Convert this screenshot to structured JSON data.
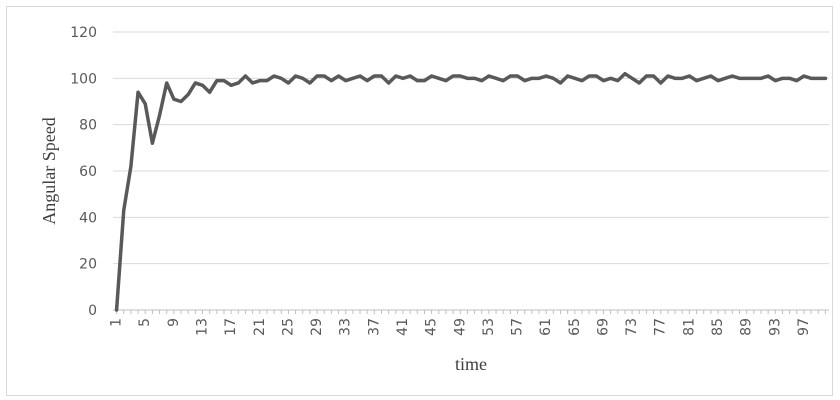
{
  "chart_data": {
    "type": "line",
    "xlabel": "time",
    "ylabel": "Angular Speed",
    "ylim": [
      0,
      120
    ],
    "yticks": [
      0,
      20,
      40,
      60,
      80,
      100,
      120
    ],
    "x_tick_labels": [
      "1",
      "5",
      "9",
      "13",
      "17",
      "21",
      "25",
      "29",
      "33",
      "37",
      "41",
      "45",
      "49",
      "53",
      "57",
      "61",
      "65",
      "69",
      "73",
      "77",
      "81",
      "85",
      "89",
      "93",
      "97"
    ],
    "grid": "horizontal",
    "legend": "none",
    "line_color": "#595959",
    "x": [
      1,
      2,
      3,
      4,
      5,
      6,
      7,
      8,
      9,
      10,
      11,
      12,
      13,
      14,
      15,
      16,
      17,
      18,
      19,
      20,
      21,
      22,
      23,
      24,
      25,
      26,
      27,
      28,
      29,
      30,
      31,
      32,
      33,
      34,
      35,
      36,
      37,
      38,
      39,
      40,
      41,
      42,
      43,
      44,
      45,
      46,
      47,
      48,
      49,
      50,
      51,
      52,
      53,
      54,
      55,
      56,
      57,
      58,
      59,
      60,
      61,
      62,
      63,
      64,
      65,
      66,
      67,
      68,
      69,
      70,
      71,
      72,
      73,
      74,
      75,
      76,
      77,
      78,
      79,
      80,
      81,
      82,
      83,
      84,
      85,
      86,
      87,
      88,
      89,
      90,
      91,
      92,
      93,
      94,
      95,
      96,
      97,
      98,
      99,
      100
    ],
    "series": [
      {
        "values": [
          0,
          43,
          62,
          94,
          89,
          72,
          84,
          98,
          91,
          90,
          93,
          98,
          97,
          94,
          99,
          99,
          97,
          98,
          101,
          98,
          99,
          99,
          101,
          100,
          98,
          101,
          100,
          98,
          101,
          101,
          99,
          101,
          99,
          100,
          101,
          99,
          101,
          101,
          98,
          101,
          100,
          101,
          99,
          99,
          101,
          100,
          99,
          101,
          101,
          100,
          100,
          99,
          101,
          100,
          99,
          101,
          101,
          99,
          100,
          100,
          101,
          100,
          98,
          101,
          100,
          99,
          101,
          101,
          99,
          100,
          99,
          102,
          100,
          98,
          101,
          101,
          98,
          101,
          100,
          100,
          101,
          99,
          100,
          101,
          99,
          100,
          101,
          100,
          100,
          100,
          100,
          101,
          99,
          100,
          100,
          99,
          101,
          100,
          100,
          100
        ]
      }
    ]
  }
}
